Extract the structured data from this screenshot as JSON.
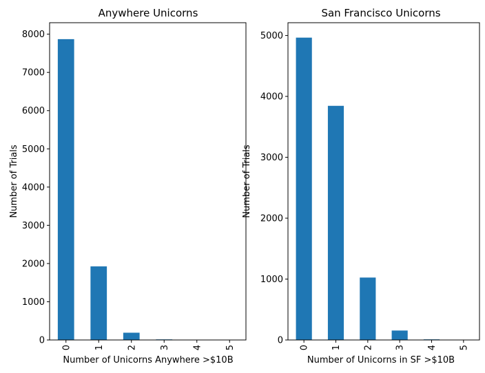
{
  "chart_data": [
    {
      "type": "bar",
      "title": "Anywhere Unicorns",
      "xlabel": "Number of Unicorns Anywhere >$10B",
      "ylabel": "Number of Trials",
      "categories": [
        "0",
        "1",
        "2",
        "3",
        "4",
        "5"
      ],
      "values": [
        7870,
        1925,
        190,
        15,
        2,
        0
      ],
      "ylim": [
        0,
        8300
      ],
      "yticks": [
        0,
        1000,
        2000,
        3000,
        4000,
        5000,
        6000,
        7000,
        8000
      ],
      "bar_color": "#1f77b4",
      "grid": false
    },
    {
      "type": "bar",
      "title": "San Francisco Unicorns",
      "xlabel": "Number of Unicorns in SF >$10B",
      "ylabel": "Number of Trials",
      "categories": [
        "0",
        "1",
        "2",
        "3",
        "4",
        "5"
      ],
      "values": [
        4965,
        3845,
        1025,
        155,
        10,
        1
      ],
      "ylim": [
        0,
        5210
      ],
      "yticks": [
        0,
        1000,
        2000,
        3000,
        4000,
        5000
      ],
      "bar_color": "#1f77b4",
      "grid": false
    }
  ]
}
